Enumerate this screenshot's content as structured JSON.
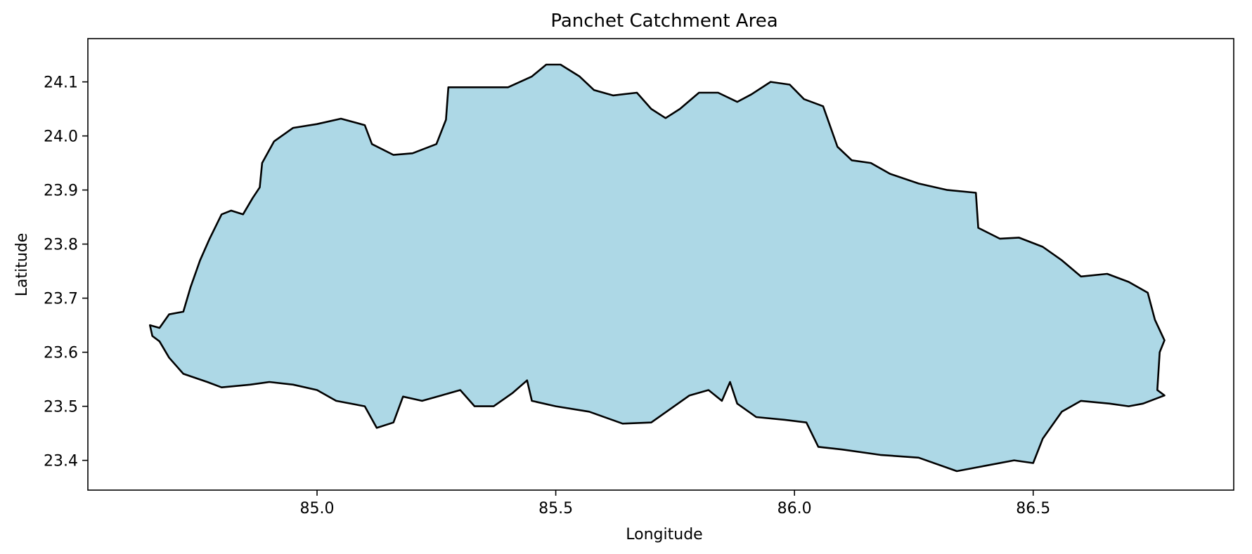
{
  "chart_data": {
    "type": "map",
    "title": "Panchet Catchment Area",
    "xlabel": "Longitude",
    "ylabel": "Latitude",
    "xlim": [
      84.52,
      86.92
    ],
    "ylim": [
      23.345,
      24.18
    ],
    "xticks": [
      85.0,
      85.5,
      86.0,
      86.5
    ],
    "xtick_labels": [
      "85.0",
      "85.5",
      "86.0",
      "86.5"
    ],
    "yticks": [
      23.4,
      23.5,
      23.6,
      23.7,
      23.8,
      23.9,
      24.0,
      24.1
    ],
    "ytick_labels": [
      "23.4",
      "23.5",
      "23.6",
      "23.7",
      "23.8",
      "23.9",
      "24.0",
      "24.1"
    ],
    "fill_color": "#add8e6",
    "edge_color": "#000000",
    "grid": false,
    "boundary": [
      [
        84.65,
        23.65
      ],
      [
        84.67,
        23.645
      ],
      [
        84.69,
        23.67
      ],
      [
        84.72,
        23.675
      ],
      [
        84.735,
        23.72
      ],
      [
        84.755,
        23.77
      ],
      [
        84.775,
        23.81
      ],
      [
        84.8,
        23.855
      ],
      [
        84.82,
        23.862
      ],
      [
        84.845,
        23.855
      ],
      [
        84.865,
        23.885
      ],
      [
        84.88,
        23.905
      ],
      [
        84.885,
        23.95
      ],
      [
        84.91,
        23.99
      ],
      [
        84.95,
        24.015
      ],
      [
        85.0,
        24.022
      ],
      [
        85.05,
        24.032
      ],
      [
        85.1,
        24.02
      ],
      [
        85.115,
        23.985
      ],
      [
        85.16,
        23.965
      ],
      [
        85.2,
        23.968
      ],
      [
        85.25,
        23.985
      ],
      [
        85.27,
        24.03
      ],
      [
        85.275,
        24.09
      ],
      [
        85.33,
        24.09
      ],
      [
        85.4,
        24.09
      ],
      [
        85.45,
        24.11
      ],
      [
        85.48,
        24.132
      ],
      [
        85.51,
        24.132
      ],
      [
        85.55,
        24.11
      ],
      [
        85.58,
        24.085
      ],
      [
        85.62,
        24.075
      ],
      [
        85.67,
        24.08
      ],
      [
        85.7,
        24.05
      ],
      [
        85.73,
        24.033
      ],
      [
        85.76,
        24.05
      ],
      [
        85.8,
        24.08
      ],
      [
        85.84,
        24.08
      ],
      [
        85.88,
        24.063
      ],
      [
        85.91,
        24.077
      ],
      [
        85.95,
        24.1
      ],
      [
        85.99,
        24.095
      ],
      [
        86.02,
        24.068
      ],
      [
        86.06,
        24.055
      ],
      [
        86.09,
        23.98
      ],
      [
        86.12,
        23.955
      ],
      [
        86.16,
        23.95
      ],
      [
        86.2,
        23.93
      ],
      [
        86.26,
        23.912
      ],
      [
        86.32,
        23.9
      ],
      [
        86.38,
        23.895
      ],
      [
        86.385,
        23.83
      ],
      [
        86.43,
        23.81
      ],
      [
        86.47,
        23.812
      ],
      [
        86.52,
        23.795
      ],
      [
        86.56,
        23.77
      ],
      [
        86.6,
        23.74
      ],
      [
        86.655,
        23.745
      ],
      [
        86.7,
        23.73
      ],
      [
        86.74,
        23.71
      ],
      [
        86.755,
        23.66
      ],
      [
        86.775,
        23.622
      ],
      [
        86.765,
        23.6
      ],
      [
        86.76,
        23.53
      ],
      [
        86.775,
        23.52
      ],
      [
        86.73,
        23.505
      ],
      [
        86.7,
        23.5
      ],
      [
        86.66,
        23.505
      ],
      [
        86.6,
        23.51
      ],
      [
        86.56,
        23.49
      ],
      [
        86.52,
        23.44
      ],
      [
        86.5,
        23.395
      ],
      [
        86.46,
        23.4
      ],
      [
        86.4,
        23.39
      ],
      [
        86.34,
        23.38
      ],
      [
        86.26,
        23.405
      ],
      [
        86.18,
        23.41
      ],
      [
        86.1,
        23.42
      ],
      [
        86.05,
        23.425
      ],
      [
        86.025,
        23.47
      ],
      [
        85.98,
        23.475
      ],
      [
        85.92,
        23.48
      ],
      [
        85.88,
        23.505
      ],
      [
        85.865,
        23.545
      ],
      [
        85.848,
        23.51
      ],
      [
        85.82,
        23.53
      ],
      [
        85.78,
        23.52
      ],
      [
        85.7,
        23.47
      ],
      [
        85.64,
        23.468
      ],
      [
        85.57,
        23.49
      ],
      [
        85.5,
        23.5
      ],
      [
        85.45,
        23.51
      ],
      [
        85.44,
        23.548
      ],
      [
        85.41,
        23.525
      ],
      [
        85.37,
        23.5
      ],
      [
        85.33,
        23.5
      ],
      [
        85.3,
        23.53
      ],
      [
        85.26,
        23.52
      ],
      [
        85.22,
        23.51
      ],
      [
        85.18,
        23.518
      ],
      [
        85.16,
        23.47
      ],
      [
        85.125,
        23.46
      ],
      [
        85.1,
        23.5
      ],
      [
        85.04,
        23.51
      ],
      [
        85.0,
        23.53
      ],
      [
        84.95,
        23.54
      ],
      [
        84.9,
        23.545
      ],
      [
        84.86,
        23.54
      ],
      [
        84.8,
        23.535
      ],
      [
        84.77,
        23.545
      ],
      [
        84.72,
        23.56
      ],
      [
        84.69,
        23.59
      ],
      [
        84.67,
        23.62
      ],
      [
        84.655,
        23.63
      ]
    ]
  }
}
